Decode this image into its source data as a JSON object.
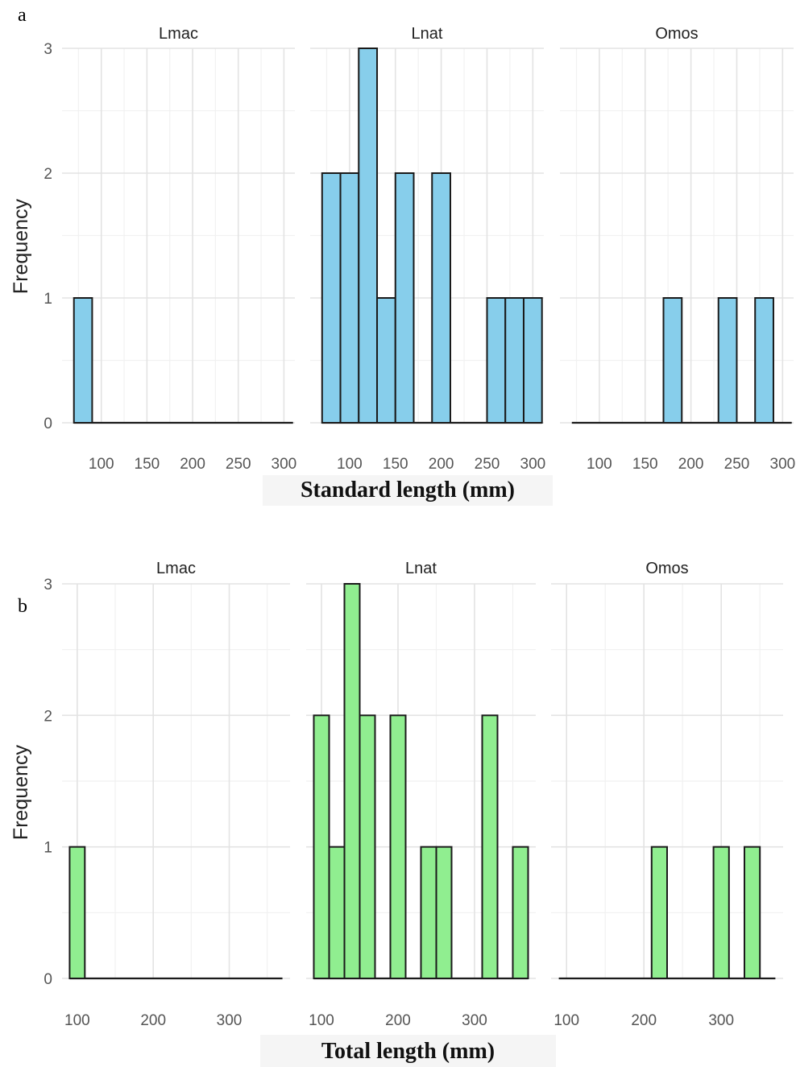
{
  "panel_labels": [
    "a",
    "b"
  ],
  "chart_data": [
    {
      "type": "bar",
      "label": "a",
      "facets": [
        "Lmac",
        "Lnat",
        "Omos"
      ],
      "xlabel": "Standard length (mm)",
      "ylabel": "Frequency",
      "xlim": [
        57,
        312
      ],
      "ylim": [
        0,
        3
      ],
      "xticks": [
        100,
        150,
        200,
        250,
        300
      ],
      "yticks": [
        0,
        1,
        2,
        3
      ],
      "grid": true,
      "fill": "#87ceeb",
      "bin_width": 20,
      "bins": {
        "Lmac": [
          {
            "x": 80,
            "count": 1
          }
        ],
        "Lnat": [
          {
            "x": 80,
            "count": 2
          },
          {
            "x": 100,
            "count": 2
          },
          {
            "x": 120,
            "count": 3
          },
          {
            "x": 140,
            "count": 1
          },
          {
            "x": 160,
            "count": 2
          },
          {
            "x": 200,
            "count": 2
          },
          {
            "x": 260,
            "count": 1
          },
          {
            "x": 280,
            "count": 1
          },
          {
            "x": 300,
            "count": 1
          }
        ],
        "Omos": [
          {
            "x": 180,
            "count": 1
          },
          {
            "x": 240,
            "count": 1
          },
          {
            "x": 280,
            "count": 1
          }
        ]
      }
    },
    {
      "type": "bar",
      "label": "b",
      "facets": [
        "Lmac",
        "Lnat",
        "Omos"
      ],
      "xlabel": "Total length (mm)",
      "ylabel": "Frequency",
      "xlim": [
        80,
        380
      ],
      "ylim": [
        0,
        3
      ],
      "xticks": [
        100,
        200,
        300
      ],
      "yticks": [
        0,
        1,
        2,
        3
      ],
      "grid": true,
      "fill": "#90ee90",
      "bin_width": 20,
      "bins": {
        "Lmac": [
          {
            "x": 100,
            "count": 1
          }
        ],
        "Lnat": [
          {
            "x": 100,
            "count": 2
          },
          {
            "x": 120,
            "count": 1
          },
          {
            "x": 140,
            "count": 3
          },
          {
            "x": 160,
            "count": 2
          },
          {
            "x": 200,
            "count": 2
          },
          {
            "x": 240,
            "count": 1
          },
          {
            "x": 260,
            "count": 1
          },
          {
            "x": 320,
            "count": 2
          },
          {
            "x": 360,
            "count": 1
          }
        ],
        "Omos": [
          {
            "x": 220,
            "count": 1
          },
          {
            "x": 300,
            "count": 1
          },
          {
            "x": 340,
            "count": 1
          }
        ]
      }
    }
  ]
}
